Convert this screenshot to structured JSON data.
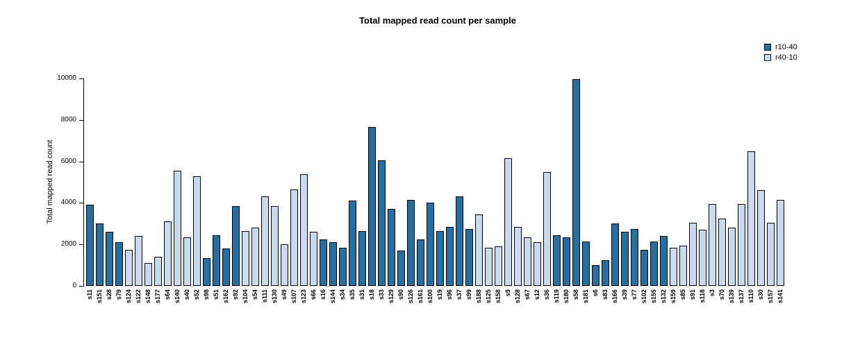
{
  "chart_data": {
    "type": "bar",
    "title": "Total mapped read count per sample",
    "xlabel": "",
    "ylabel": "Total mapped read count",
    "ylim": [
      0,
      10000
    ],
    "yticks": [
      0,
      2000,
      4000,
      6000,
      8000,
      10000
    ],
    "grid": false,
    "legend_position": "top-right",
    "legend": [
      {
        "name": "r10-40",
        "color": "#2170a8"
      },
      {
        "name": "r40-10",
        "color": "#c6dbef"
      }
    ],
    "series_colors": {
      "r10-40": "#2170a8",
      "r40-10": "#c6dbef"
    },
    "samples": [
      {
        "name": "s11",
        "group": "r10-40",
        "value": 3900
      },
      {
        "name": "s151",
        "group": "r10-40",
        "value": 3000
      },
      {
        "name": "s28",
        "group": "r10-40",
        "value": 2600
      },
      {
        "name": "s79",
        "group": "r10-40",
        "value": 2100
      },
      {
        "name": "s124",
        "group": "r40-10",
        "value": 1750
      },
      {
        "name": "s122",
        "group": "r40-10",
        "value": 2400
      },
      {
        "name": "s148",
        "group": "r40-10",
        "value": 1100
      },
      {
        "name": "s177",
        "group": "r40-10",
        "value": 1400
      },
      {
        "name": "s64",
        "group": "r40-10",
        "value": 3100
      },
      {
        "name": "s140",
        "group": "r40-10",
        "value": 5550
      },
      {
        "name": "s40",
        "group": "r40-10",
        "value": 2350
      },
      {
        "name": "s52",
        "group": "r40-10",
        "value": 5300
      },
      {
        "name": "s98",
        "group": "r10-40",
        "value": 1350
      },
      {
        "name": "s51",
        "group": "r10-40",
        "value": 2450
      },
      {
        "name": "s162",
        "group": "r10-40",
        "value": 1800
      },
      {
        "name": "s92",
        "group": "r10-40",
        "value": 3850
      },
      {
        "name": "s104",
        "group": "r40-10",
        "value": 2650
      },
      {
        "name": "s54",
        "group": "r40-10",
        "value": 2800
      },
      {
        "name": "s111",
        "group": "r40-10",
        "value": 4300
      },
      {
        "name": "s130",
        "group": "r40-10",
        "value": 3850
      },
      {
        "name": "s49",
        "group": "r40-10",
        "value": 2000
      },
      {
        "name": "s107",
        "group": "r40-10",
        "value": 4650
      },
      {
        "name": "s123",
        "group": "r40-10",
        "value": 5400
      },
      {
        "name": "s66",
        "group": "r40-10",
        "value": 2600
      },
      {
        "name": "s16",
        "group": "r10-40",
        "value": 2250
      },
      {
        "name": "s144",
        "group": "r10-40",
        "value": 2100
      },
      {
        "name": "s34",
        "group": "r10-40",
        "value": 1850
      },
      {
        "name": "s35",
        "group": "r10-40",
        "value": 4100
      },
      {
        "name": "s31",
        "group": "r10-40",
        "value": 2650
      },
      {
        "name": "s18",
        "group": "r10-40",
        "value": 7650
      },
      {
        "name": "s33",
        "group": "r10-40",
        "value": 6050
      },
      {
        "name": "s129",
        "group": "r10-40",
        "value": 3700
      },
      {
        "name": "s90",
        "group": "r10-40",
        "value": 1700
      },
      {
        "name": "s126",
        "group": "r10-40",
        "value": 4150
      },
      {
        "name": "s161",
        "group": "r10-40",
        "value": 2250
      },
      {
        "name": "s100",
        "group": "r10-40",
        "value": 4000
      },
      {
        "name": "s19",
        "group": "r10-40",
        "value": 2650
      },
      {
        "name": "s96",
        "group": "r10-40",
        "value": 2850
      },
      {
        "name": "s37",
        "group": "r10-40",
        "value": 4300
      },
      {
        "name": "s99",
        "group": "r10-40",
        "value": 2750
      },
      {
        "name": "s188",
        "group": "r40-10",
        "value": 3450
      },
      {
        "name": "s125",
        "group": "r40-10",
        "value": 1850
      },
      {
        "name": "s158",
        "group": "r40-10",
        "value": 1900
      },
      {
        "name": "s9",
        "group": "r40-10",
        "value": 6150
      },
      {
        "name": "s128",
        "group": "r40-10",
        "value": 2850
      },
      {
        "name": "s67",
        "group": "r40-10",
        "value": 2350
      },
      {
        "name": "s12",
        "group": "r40-10",
        "value": 2100
      },
      {
        "name": "s36",
        "group": "r40-10",
        "value": 5500
      },
      {
        "name": "s119",
        "group": "r10-40",
        "value": 2450
      },
      {
        "name": "s180",
        "group": "r10-40",
        "value": 2350
      },
      {
        "name": "s58",
        "group": "r10-40",
        "value": 9950
      },
      {
        "name": "s181",
        "group": "r10-40",
        "value": 2150
      },
      {
        "name": "s6",
        "group": "r10-40",
        "value": 1000
      },
      {
        "name": "s83",
        "group": "r10-40",
        "value": 1250
      },
      {
        "name": "s166",
        "group": "r10-40",
        "value": 3000
      },
      {
        "name": "s39",
        "group": "r10-40",
        "value": 2600
      },
      {
        "name": "s77",
        "group": "r10-40",
        "value": 2750
      },
      {
        "name": "s102",
        "group": "r10-40",
        "value": 1750
      },
      {
        "name": "s155",
        "group": "r10-40",
        "value": 2150
      },
      {
        "name": "s132",
        "group": "r10-40",
        "value": 2400
      },
      {
        "name": "s159",
        "group": "r40-10",
        "value": 1850
      },
      {
        "name": "s85",
        "group": "r40-10",
        "value": 1950
      },
      {
        "name": "s91",
        "group": "r40-10",
        "value": 3050
      },
      {
        "name": "s118",
        "group": "r40-10",
        "value": 2700
      },
      {
        "name": "s3",
        "group": "r40-10",
        "value": 3950
      },
      {
        "name": "s70",
        "group": "r40-10",
        "value": 3250
      },
      {
        "name": "s139",
        "group": "r40-10",
        "value": 2800
      },
      {
        "name": "s137",
        "group": "r40-10",
        "value": 3950
      },
      {
        "name": "s110",
        "group": "r40-10",
        "value": 6500
      },
      {
        "name": "s30",
        "group": "r40-10",
        "value": 4600
      },
      {
        "name": "s157",
        "group": "r40-10",
        "value": 3050
      },
      {
        "name": "s141",
        "group": "r40-10",
        "value": 4150
      }
    ]
  }
}
